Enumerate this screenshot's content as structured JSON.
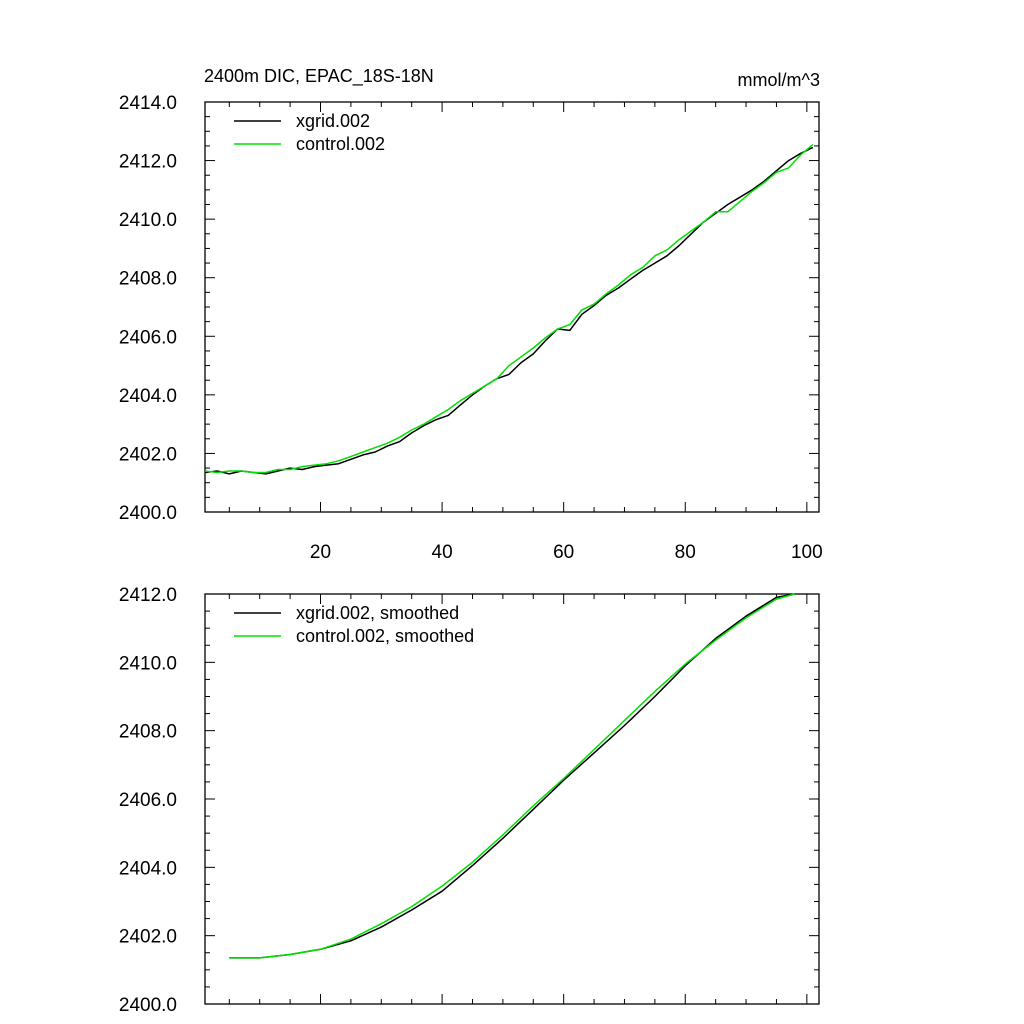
{
  "chart_data": [
    {
      "type": "line",
      "title": "2400m DIC, EPAC_18S-18N",
      "units": "mmol/m^3",
      "xlim": [
        1,
        102
      ],
      "ylim": [
        2400.0,
        2414.0
      ],
      "xticks": [
        20,
        40,
        60,
        80,
        100
      ],
      "xtick_labels": [
        "20",
        "40",
        "60",
        "80",
        "100"
      ],
      "yticks": [
        2400,
        2402,
        2404,
        2406,
        2408,
        2410,
        2412,
        2414
      ],
      "ytick_labels": [
        "2400.0",
        "2402.0",
        "2404.0",
        "2406.0",
        "2408.0",
        "2410.0",
        "2412.0",
        "2414.0"
      ],
      "legend_position": "top-left",
      "series": [
        {
          "name": "xgrid.002",
          "color": "#000000",
          "x": [
            1,
            3,
            5,
            7,
            9,
            11,
            13,
            15,
            17,
            19,
            21,
            23,
            25,
            27,
            29,
            31,
            33,
            35,
            37,
            39,
            41,
            43,
            45,
            47,
            49,
            51,
            53,
            55,
            57,
            59,
            61,
            63,
            65,
            67,
            69,
            71,
            73,
            75,
            77,
            79,
            81,
            83,
            85,
            87,
            89,
            91,
            93,
            95,
            97,
            99,
            101
          ],
          "values": [
            2401.35,
            2401.4,
            2401.3,
            2401.4,
            2401.35,
            2401.3,
            2401.4,
            2401.5,
            2401.45,
            2401.55,
            2401.6,
            2401.65,
            2401.8,
            2401.95,
            2402.05,
            2402.25,
            2402.4,
            2402.7,
            2402.95,
            2403.15,
            2403.3,
            2403.65,
            2404.0,
            2404.3,
            2404.55,
            2404.7,
            2405.1,
            2405.4,
            2405.85,
            2406.25,
            2406.2,
            2406.75,
            2407.05,
            2407.4,
            2407.65,
            2407.95,
            2408.25,
            2408.5,
            2408.75,
            2409.1,
            2409.5,
            2409.9,
            2410.2,
            2410.5,
            2410.75,
            2411.0,
            2411.3,
            2411.65,
            2412.0,
            2412.25,
            2412.45
          ]
        },
        {
          "name": "control.002",
          "color": "#00e000",
          "x": [
            1,
            3,
            5,
            7,
            9,
            11,
            13,
            15,
            17,
            19,
            21,
            23,
            25,
            27,
            29,
            31,
            33,
            35,
            37,
            39,
            41,
            43,
            45,
            47,
            49,
            51,
            53,
            55,
            57,
            59,
            61,
            63,
            65,
            67,
            69,
            71,
            73,
            75,
            77,
            79,
            81,
            83,
            85,
            87,
            89,
            91,
            93,
            95,
            97,
            99,
            101
          ],
          "values": [
            2401.4,
            2401.35,
            2401.4,
            2401.4,
            2401.35,
            2401.35,
            2401.45,
            2401.45,
            2401.55,
            2401.6,
            2401.65,
            2401.75,
            2401.9,
            2402.05,
            2402.2,
            2402.35,
            2402.55,
            2402.8,
            2403.0,
            2403.25,
            2403.5,
            2403.8,
            2404.05,
            2404.3,
            2404.55,
            2405.0,
            2405.3,
            2405.6,
            2405.95,
            2406.25,
            2406.4,
            2406.9,
            2407.1,
            2407.45,
            2407.75,
            2408.1,
            2408.35,
            2408.75,
            2408.95,
            2409.3,
            2409.6,
            2409.9,
            2410.25,
            2410.25,
            2410.6,
            2410.95,
            2411.25,
            2411.6,
            2411.75,
            2412.2,
            2412.55
          ]
        }
      ]
    },
    {
      "type": "line",
      "title": "",
      "xlim": [
        1,
        102
      ],
      "ylim": [
        2400.0,
        2412.0
      ],
      "xticks": [
        20,
        40,
        60,
        80,
        100
      ],
      "yticks": [
        2400,
        2402,
        2404,
        2406,
        2408,
        2410,
        2412
      ],
      "ytick_labels": [
        "2400.0",
        "2402.0",
        "2404.0",
        "2406.0",
        "2408.0",
        "2410.0",
        "2412.0"
      ],
      "legend_position": "top-left",
      "series": [
        {
          "name": "xgrid.002, smoothed",
          "color": "#000000",
          "x": [
            5,
            10,
            15,
            20,
            25,
            30,
            35,
            40,
            45,
            50,
            55,
            60,
            65,
            70,
            75,
            80,
            85,
            90,
            95,
            98
          ],
          "values": [
            2401.35,
            2401.35,
            2401.45,
            2401.6,
            2401.85,
            2402.25,
            2402.75,
            2403.3,
            2404.05,
            2404.85,
            2405.7,
            2406.55,
            2407.35,
            2408.15,
            2409.0,
            2409.9,
            2410.7,
            2411.35,
            2411.9,
            2412.0
          ]
        },
        {
          "name": "control.002, smoothed",
          "color": "#00e000",
          "x": [
            5,
            10,
            15,
            20,
            25,
            30,
            35,
            40,
            45,
            50,
            55,
            60,
            65,
            70,
            75,
            80,
            85,
            90,
            95,
            98
          ],
          "values": [
            2401.35,
            2401.35,
            2401.45,
            2401.6,
            2401.9,
            2402.35,
            2402.85,
            2403.45,
            2404.15,
            2404.95,
            2405.8,
            2406.6,
            2407.45,
            2408.3,
            2409.15,
            2409.95,
            2410.65,
            2411.3,
            2411.85,
            2412.0
          ]
        }
      ]
    }
  ]
}
